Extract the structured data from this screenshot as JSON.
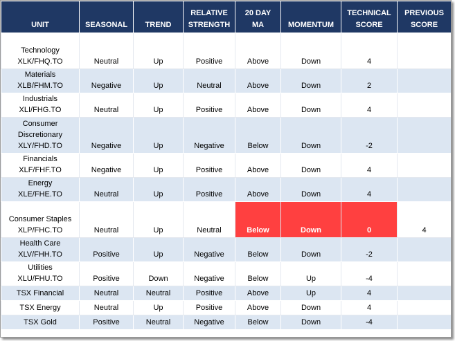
{
  "headers": {
    "unit": "UNIT",
    "seasonal": "SEASONAL",
    "trend": "TREND",
    "relative_strength_1": "RELATIVE",
    "relative_strength_2": "STRENGTH",
    "ma_1": "20 DAY",
    "ma_2": "MA",
    "momentum": "MOMENTUM",
    "technical_score_1": "TECHNICAL",
    "technical_score_2": "SCORE",
    "previous_score_1": "PREVIOUS",
    "previous_score_2": "SCORE"
  },
  "rows": [
    {
      "unit": [
        "Technology",
        "XLK/FHQ.TO"
      ],
      "seasonal": "Neutral",
      "trend": "Up",
      "relative_strength": "Positive",
      "ma": "Above",
      "momentum": "Down",
      "technical_score": "4",
      "previous_score": ""
    },
    {
      "unit": [
        "Materials",
        "XLB/FHM.TO"
      ],
      "seasonal": "Negative",
      "trend": "Up",
      "relative_strength": "Neutral",
      "ma": "Above",
      "momentum": "Down",
      "technical_score": "2",
      "previous_score": ""
    },
    {
      "unit": [
        "Industrials",
        "XLI/FHG.TO"
      ],
      "seasonal": "Neutral",
      "trend": "Up",
      "relative_strength": "Positive",
      "ma": "Above",
      "momentum": "Down",
      "technical_score": "4",
      "previous_score": ""
    },
    {
      "unit": [
        "Consumer",
        "Discretionary",
        "XLY/FHD.TO"
      ],
      "seasonal": "Negative",
      "trend": "Up",
      "relative_strength": "Negative",
      "ma": "Below",
      "momentum": "Down",
      "technical_score": "-2",
      "previous_score": ""
    },
    {
      "unit": [
        "Financials",
        "XLF/FHF.TO"
      ],
      "seasonal": "Negative",
      "trend": "Up",
      "relative_strength": "Positive",
      "ma": "Above",
      "momentum": "Down",
      "technical_score": "4",
      "previous_score": ""
    },
    {
      "unit": [
        "Energy",
        "XLE/FHE.TO"
      ],
      "seasonal": "Neutral",
      "trend": "Up",
      "relative_strength": "Positive",
      "ma": "Above",
      "momentum": "Down",
      "technical_score": "4",
      "previous_score": ""
    },
    {
      "unit": [
        "Consumer Staples",
        "XLP/FHC.TO"
      ],
      "seasonal": "Neutral",
      "trend": "Up",
      "relative_strength": "Neutral",
      "ma": "Below",
      "momentum": "Down",
      "technical_score": "0",
      "previous_score": "4",
      "highlight": true
    },
    {
      "unit": [
        "Health Care",
        "XLV/FHH.TO"
      ],
      "seasonal": "Positive",
      "trend": "Up",
      "relative_strength": "Negative",
      "ma": "Below",
      "momentum": "Down",
      "technical_score": "-2",
      "previous_score": ""
    },
    {
      "unit": [
        "Utilities",
        "XLU/FHU.TO"
      ],
      "seasonal": "Positive",
      "trend": "Down",
      "relative_strength": "Negative",
      "ma": "Below",
      "momentum": "Up",
      "technical_score": "-4",
      "previous_score": ""
    },
    {
      "unit": [
        "TSX Financial"
      ],
      "seasonal": "Neutral",
      "trend": "Neutral",
      "relative_strength": "Positive",
      "ma": "Above",
      "momentum": "Up",
      "technical_score": "4",
      "previous_score": ""
    },
    {
      "unit": [
        "TSX Energy"
      ],
      "seasonal": "Neutral",
      "trend": "Up",
      "relative_strength": "Positive",
      "ma": "Above",
      "momentum": "Down",
      "technical_score": "4",
      "previous_score": ""
    },
    {
      "unit": [
        "TSX Gold"
      ],
      "seasonal": "Positive",
      "trend": "Neutral",
      "relative_strength": "Negative",
      "ma": "Below",
      "momentum": "Down",
      "technical_score": "-4",
      "previous_score": ""
    }
  ],
  "colors": {
    "header_bg": "#1f3864",
    "band_bg": "#dce6f2",
    "highlight_bg": "#ff4040"
  }
}
